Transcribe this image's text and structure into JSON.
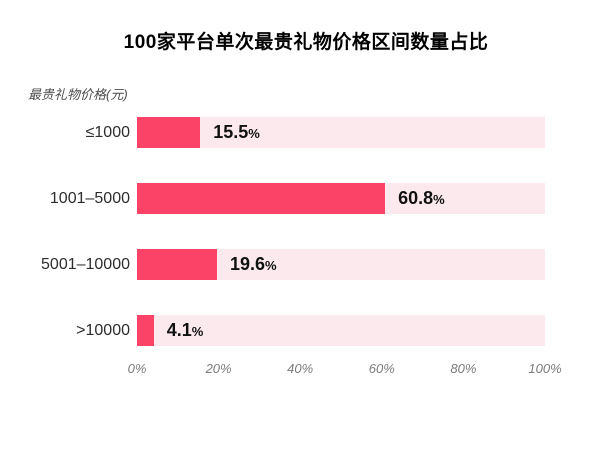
{
  "chart_data": {
    "type": "bar",
    "orientation": "horizontal",
    "title": "100家平台单次最贵礼物价格区间数量占比",
    "ylabel": "最贵礼物价格(元)",
    "xlabel": "",
    "categories": [
      "≤1000",
      "1001–5000",
      "5001–10000",
      ">10000"
    ],
    "values": [
      15.5,
      60.8,
      19.6,
      4.1
    ],
    "value_labels": [
      "15.5",
      "60.8",
      "19.6",
      "4.1"
    ],
    "value_suffix": "%",
    "x_ticks": [
      "0%",
      "20%",
      "40%",
      "60%",
      "80%",
      "100%"
    ],
    "xlim": [
      0,
      100
    ],
    "grid": false,
    "legend": "none",
    "colors": {
      "bar": "#fb4367",
      "bar_track": "#fce9ee",
      "title_text": "#000000",
      "category_text": "#2d2d2d",
      "value_text": "#111111",
      "tick_text": "#7b7b7b"
    }
  }
}
